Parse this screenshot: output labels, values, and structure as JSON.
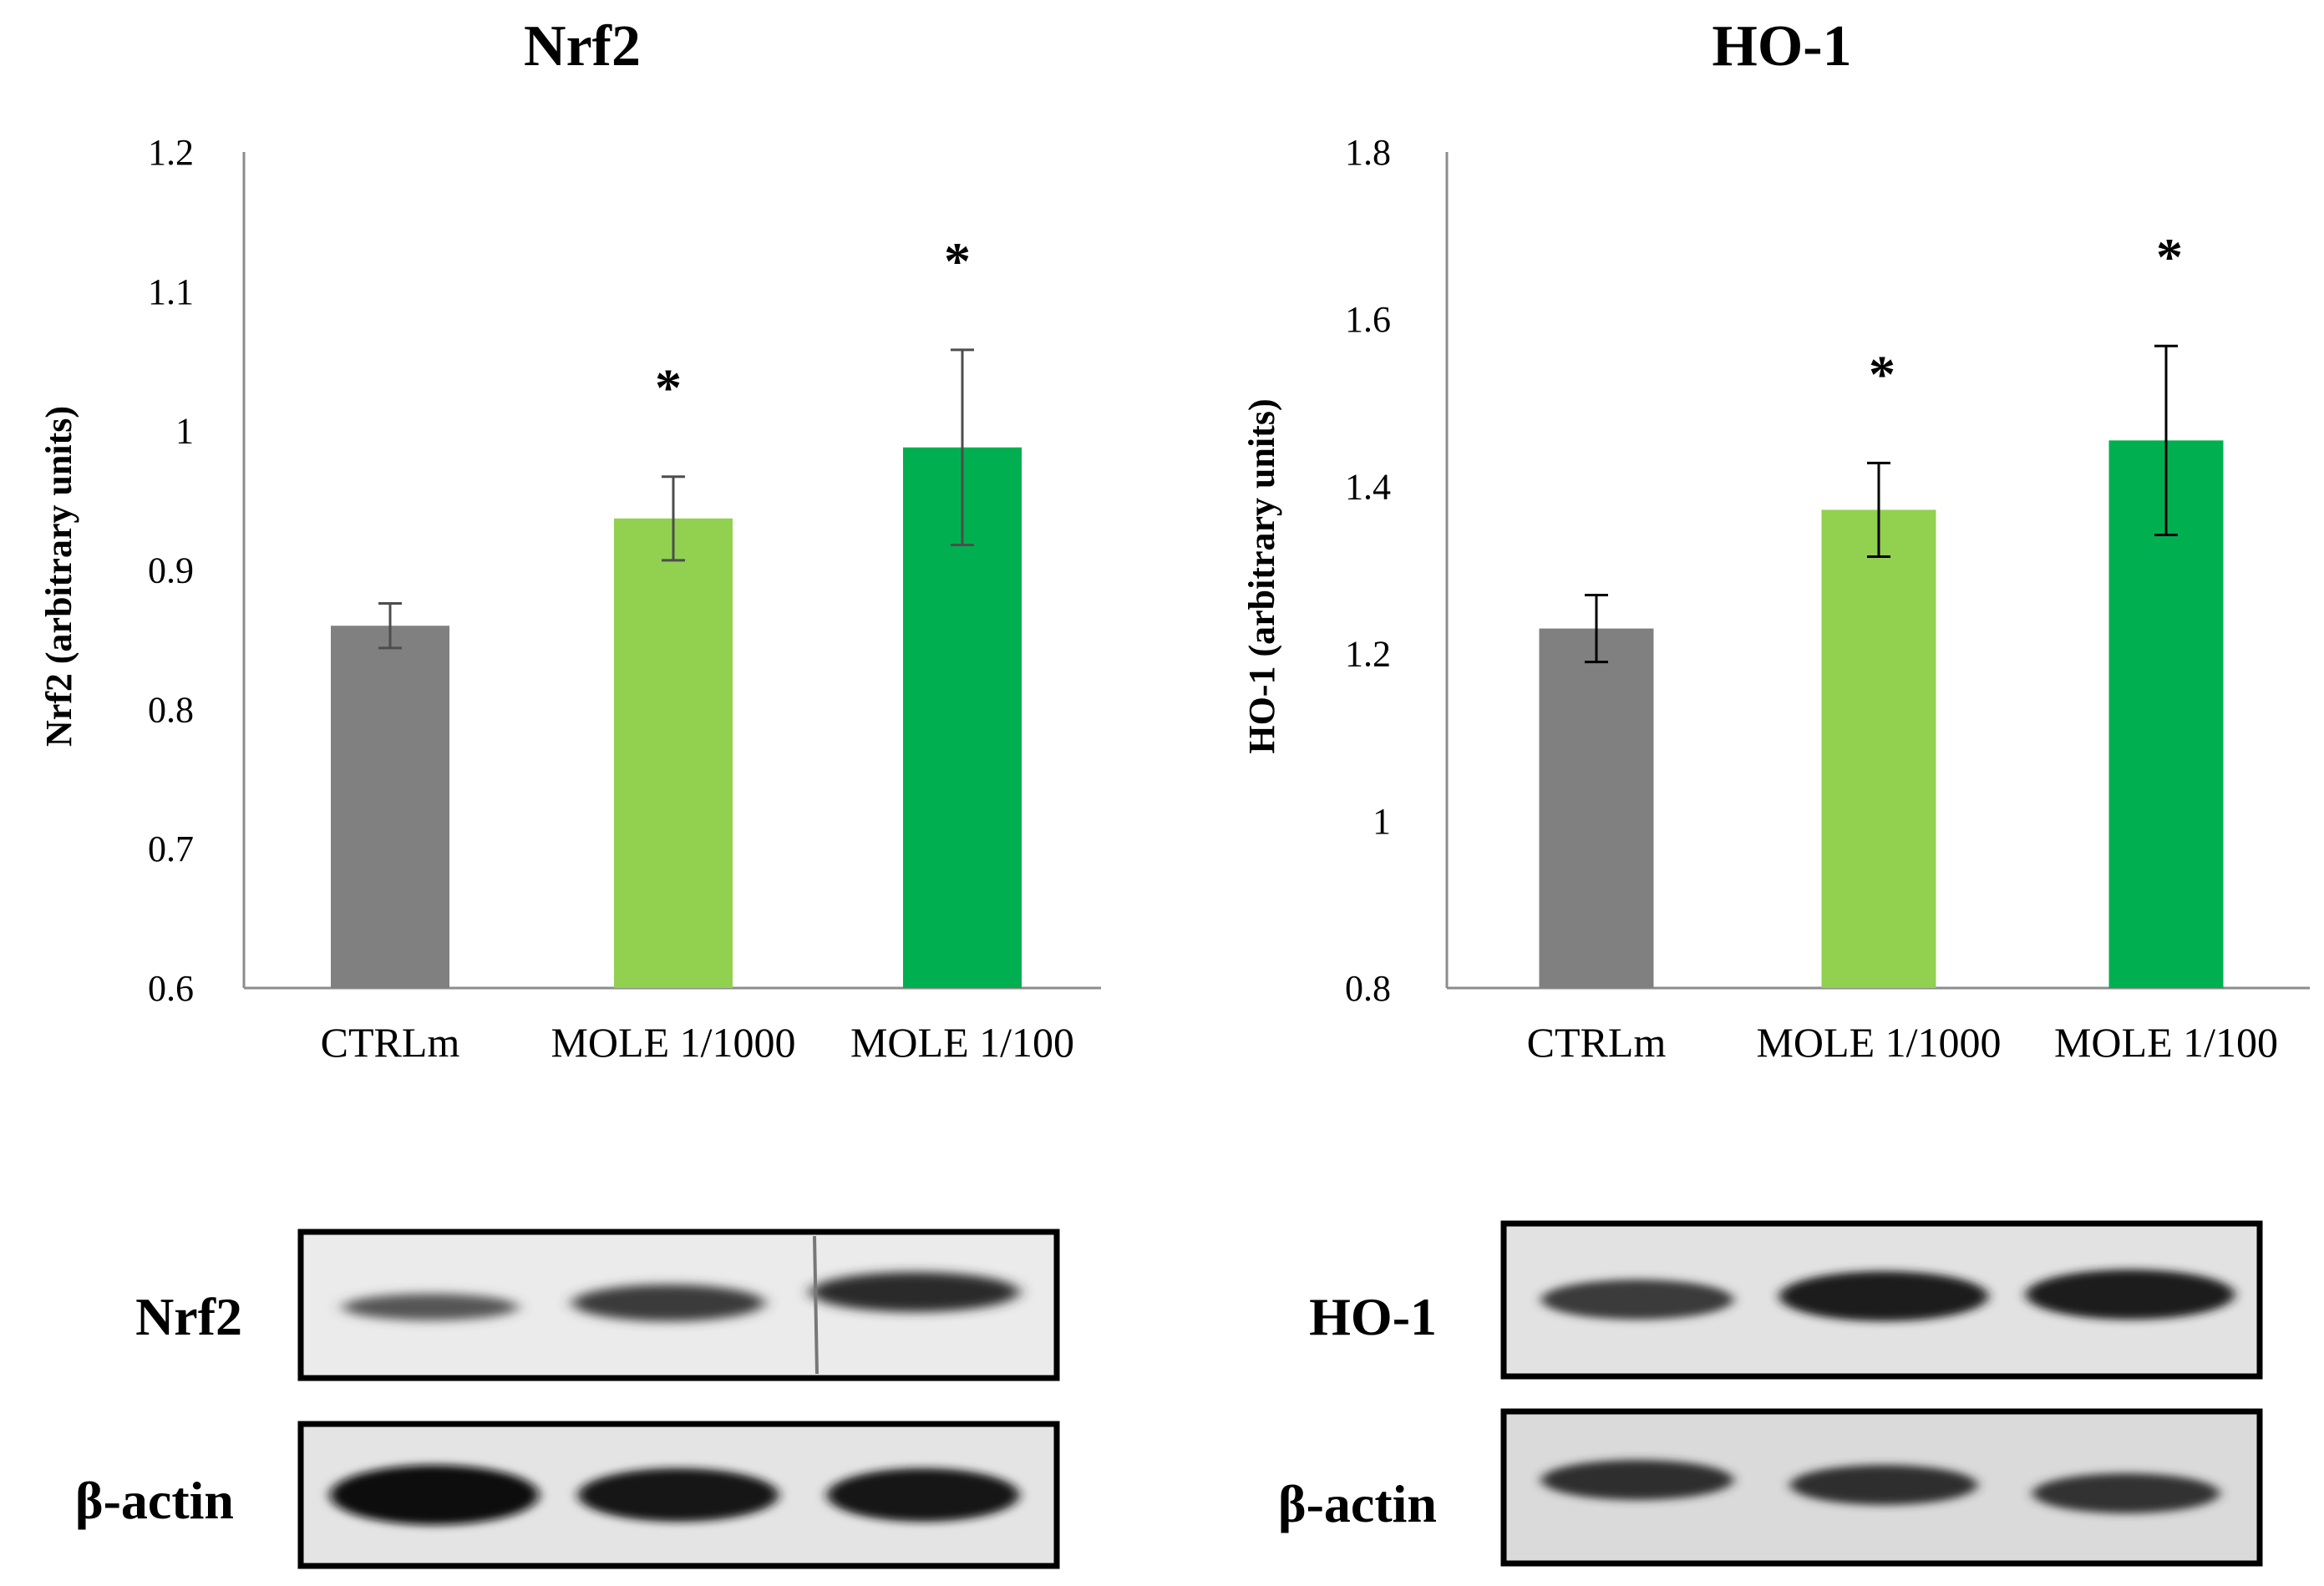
{
  "chart_data": [
    {
      "type": "bar",
      "title": "Nrf2",
      "ylabel": "Nrf2 (arbitrary units)",
      "xlabel": "",
      "categories": [
        "CTRLm",
        "MOLE 1/1000",
        "MOLE 1/100"
      ],
      "values": [
        0.86,
        0.937,
        0.988
      ],
      "errors": [
        0.016,
        0.03,
        0.07
      ],
      "significance": [
        "",
        "*",
        "*"
      ],
      "ylim": [
        0.6,
        1.2
      ],
      "yticks": [
        "0.6",
        "0.7",
        "0.8",
        "0.9",
        "1",
        "1.1",
        "1.2"
      ],
      "ytick_values": [
        0.6,
        0.7,
        0.8,
        0.9,
        1.0,
        1.1,
        1.2
      ],
      "bar_colors": [
        "#808080",
        "#92d050",
        "#00b050"
      ],
      "grid": false,
      "legend": "none"
    },
    {
      "type": "bar",
      "title": "HO-1",
      "ylabel": "HO-1 (arbitrary units)",
      "xlabel": "",
      "categories": [
        "CTRLm",
        "MOLE 1/1000",
        "MOLE 1/100"
      ],
      "values": [
        1.23,
        1.372,
        1.455
      ],
      "errors": [
        0.04,
        0.056,
        0.113
      ],
      "significance": [
        "",
        "*",
        "*"
      ],
      "ylim": [
        0.8,
        1.8
      ],
      "yticks": [
        "0.8",
        "1",
        "1.2",
        "1.4",
        "1.6",
        "1.8"
      ],
      "ytick_values": [
        0.8,
        1.0,
        1.2,
        1.4,
        1.6,
        1.8
      ],
      "bar_colors": [
        "#808080",
        "#92d050",
        "#00b050"
      ],
      "grid": false,
      "legend": "none"
    }
  ],
  "blots": [
    {
      "protein_label": "Nrf2",
      "control_label": "β-actin"
    },
    {
      "protein_label": "HO-1",
      "control_label": "β-actin"
    }
  ]
}
